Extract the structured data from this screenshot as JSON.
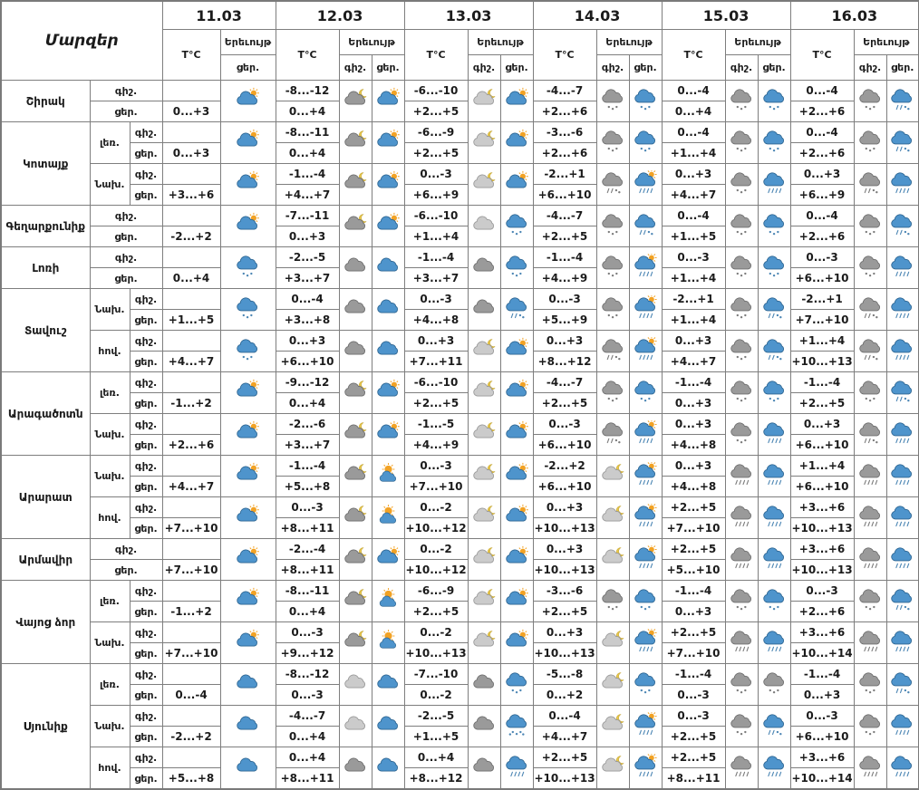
{
  "title": "Մարզեր",
  "dates": [
    "11.03",
    "12.03",
    "13.03",
    "14.03",
    "15.03",
    "16.03"
  ],
  "header": {
    "temp": "T°C",
    "phenomenon": "Երեւույթ",
    "night": "գիշ.",
    "day": "ցեր."
  },
  "colors": {
    "border": "#7e7e7e",
    "text": "#1b1b1b",
    "sun": "#f2a224",
    "moon": "#e9c94e",
    "moon_stroke": "#c0a02e",
    "cloud_blue": "#4e94cc",
    "cloud_blue_stroke": "#2d6591",
    "cloud_gray": "#9a9a9a",
    "cloud_gray_stroke": "#6d6d6d",
    "cloud_light": "#cbcbcb",
    "cloud_light_stroke": "#989898",
    "precip_gray": "#7b7b7b",
    "precip_blue": "#4c86b4"
  },
  "regions": [
    {
      "name": "Շիրակ",
      "zones": [
        {
          "zone": "",
          "night_temps": [
            "",
            "-8...-12",
            "-6...-10",
            "-4...-7",
            "0...-4",
            "0...-4"
          ],
          "day_temps": [
            "0...+3",
            "0...+4",
            "+2...+5",
            "+2...+6",
            "0...+4",
            "+2...+6"
          ],
          "icons_night": [
            null,
            "moon-cloud-dark",
            "moon-cloud-light",
            "cloud-gray-snow",
            "cloud-gray-snow",
            "cloud-gray-snow"
          ],
          "icons_day": [
            "sun-cloud",
            "sun-cloud",
            "sun-cloud",
            "cloud-blue-snow",
            "cloud-blue-snow",
            "cloud-blue-sleet"
          ]
        }
      ]
    },
    {
      "name": "Կոտայք",
      "zones": [
        {
          "zone": "լեռ.",
          "night_temps": [
            "",
            "-8...-11",
            "-6...-9",
            "-3...-6",
            "0...-4",
            "0...-4"
          ],
          "day_temps": [
            "0...+3",
            "0...+4",
            "+2...+5",
            "+2...+6",
            "+1...+4",
            "+2...+6"
          ],
          "icons_night": [
            null,
            "moon-cloud-dark",
            "moon-cloud-light",
            "cloud-gray-snow",
            "cloud-gray-snow",
            "cloud-gray-snow"
          ],
          "icons_day": [
            "sun-cloud",
            "sun-cloud",
            "sun-cloud",
            "cloud-blue-snow",
            "cloud-blue-snow",
            "cloud-blue-sleet"
          ]
        },
        {
          "zone": "Նախ.",
          "night_temps": [
            "",
            "-1...-4",
            "0...-3",
            "-2...+1",
            "0...+3",
            "0...+3"
          ],
          "day_temps": [
            "+3...+6",
            "+4...+7",
            "+6...+9",
            "+6...+10",
            "+4...+7",
            "+6...+9"
          ],
          "icons_night": [
            null,
            "moon-cloud-dark",
            "moon-cloud-light",
            "cloud-gray-sleet",
            "cloud-gray-snow",
            "cloud-gray-sleet"
          ],
          "icons_day": [
            "sun-cloud",
            "sun-cloud",
            "sun-cloud",
            "sun-cloud-rain",
            "cloud-blue-rain",
            "cloud-blue-rain"
          ]
        }
      ]
    },
    {
      "name": "Գեղարքունիք",
      "zones": [
        {
          "zone": "",
          "night_temps": [
            "",
            "-7...-11",
            "-6...-10",
            "-4...-7",
            "0...-4",
            "0...-4"
          ],
          "day_temps": [
            "-2...+2",
            "0...+3",
            "+1...+4",
            "+2...+5",
            "+1...+5",
            "+2...+6"
          ],
          "icons_night": [
            null,
            "moon-cloud-dark",
            "cloud-light",
            "cloud-gray-snow",
            "cloud-gray-snow",
            "cloud-gray-snow"
          ],
          "icons_day": [
            "sun-cloud",
            "sun-cloud",
            "cloud-blue-snow",
            "cloud-blue-sleet",
            "cloud-blue-snow",
            "cloud-blue-sleet"
          ]
        }
      ]
    },
    {
      "name": "Լոռի",
      "zones": [
        {
          "zone": "",
          "night_temps": [
            "",
            "-2...-5",
            "-1...-4",
            "-1...-4",
            "0...-3",
            "0...-3"
          ],
          "day_temps": [
            "0...+4",
            "+3...+7",
            "+3...+7",
            "+4...+9",
            "+1...+4",
            "+6...+10"
          ],
          "icons_night": [
            null,
            "cloud-gray",
            "cloud-gray",
            "cloud-gray-snow",
            "cloud-gray-snow",
            "cloud-gray-snow"
          ],
          "icons_day": [
            "cloud-blue-snow",
            "cloud-blue",
            "cloud-blue-snow",
            "sun-cloud-rain",
            "cloud-blue-snow",
            "cloud-blue-rain"
          ]
        }
      ]
    },
    {
      "name": "Տավուշ",
      "zones": [
        {
          "zone": "Նախ.",
          "night_temps": [
            "",
            "0...-4",
            "0...-3",
            "0...-3",
            "-2...+1",
            "-2...+1"
          ],
          "day_temps": [
            "+1...+5",
            "+3...+8",
            "+4...+8",
            "+5...+9",
            "+1...+4",
            "+7...+10"
          ],
          "icons_night": [
            null,
            "cloud-gray",
            "cloud-gray",
            "cloud-gray-snow",
            "cloud-gray-snow",
            "cloud-gray-sleet"
          ],
          "icons_day": [
            "cloud-blue-snow",
            "cloud-blue",
            "cloud-blue-sleet",
            "sun-cloud-rain",
            "cloud-blue-sleet",
            "cloud-blue-rain"
          ]
        },
        {
          "zone": "հով.",
          "night_temps": [
            "",
            "0...+3",
            "0...+3",
            "0...+3",
            "0...+3",
            "+1...+4"
          ],
          "day_temps": [
            "+4...+7",
            "+6...+10",
            "+7...+11",
            "+8...+12",
            "+4...+7",
            "+10...+13"
          ],
          "icons_night": [
            null,
            "cloud-gray",
            "moon-cloud-light",
            "cloud-gray-sleet",
            "cloud-gray-snow",
            "cloud-gray-sleet"
          ],
          "icons_day": [
            "cloud-blue-snow",
            "cloud-blue",
            "sun-cloud",
            "sun-cloud-rain",
            "cloud-blue-sleet",
            "cloud-blue-rain"
          ]
        }
      ]
    },
    {
      "name": "Արագածոտն",
      "zones": [
        {
          "zone": "լեռ.",
          "night_temps": [
            "",
            "-9...-12",
            "-6...-10",
            "-4...-7",
            "-1...-4",
            "-1...-4"
          ],
          "day_temps": [
            "-1...+2",
            "0...+4",
            "+2...+5",
            "+2...+5",
            "0...+3",
            "+2...+5"
          ],
          "icons_night": [
            null,
            "moon-cloud-dark",
            "moon-cloud-light",
            "cloud-gray-snow",
            "cloud-gray-snow",
            "cloud-gray-snow"
          ],
          "icons_day": [
            "sun-cloud",
            "sun-cloud",
            "sun-cloud",
            "cloud-blue-snow",
            "cloud-blue-snow",
            "cloud-blue-sleet"
          ]
        },
        {
          "zone": "Նախ.",
          "night_temps": [
            "",
            "-2...-6",
            "-1...-5",
            "0...-3",
            "0...+3",
            "0...+3"
          ],
          "day_temps": [
            "+2...+6",
            "+3...+7",
            "+4...+9",
            "+6...+10",
            "+4...+8",
            "+6...+10"
          ],
          "icons_night": [
            null,
            "moon-cloud-dark",
            "moon-cloud-light",
            "cloud-gray-sleet",
            "cloud-gray-snow",
            "cloud-gray-sleet"
          ],
          "icons_day": [
            "sun-cloud",
            "sun-cloud",
            "sun-cloud",
            "sun-cloud-rain",
            "cloud-blue-rain",
            "cloud-blue-rain"
          ]
        }
      ]
    },
    {
      "name": "Արարատ",
      "zones": [
        {
          "zone": "Նախ.",
          "night_temps": [
            "",
            "-1...-4",
            "0...-3",
            "-2...+2",
            "0...+3",
            "+1...+4"
          ],
          "day_temps": [
            "+4...+7",
            "+5...+8",
            "+7...+10",
            "+6...+10",
            "+4...+8",
            "+6...+10"
          ],
          "icons_night": [
            null,
            "moon-cloud-dark",
            "moon-cloud-light",
            "moon-cloud-light",
            "cloud-gray-rain",
            "cloud-gray-rain"
          ],
          "icons_day": [
            "sun-cloud",
            "sun-behind-cloud",
            "sun-cloud",
            "sun-cloud-rain",
            "cloud-blue-rain",
            "cloud-blue-rain"
          ]
        },
        {
          "zone": "հով.",
          "night_temps": [
            "",
            "0...-3",
            "0...-2",
            "0...+3",
            "+2...+5",
            "+3...+6"
          ],
          "day_temps": [
            "+7...+10",
            "+8...+11",
            "+10...+12",
            "+10...+13",
            "+7...+10",
            "+10...+13"
          ],
          "icons_night": [
            null,
            "moon-cloud-dark",
            "moon-cloud-light",
            "moon-cloud-light",
            "cloud-gray-rain",
            "cloud-gray-rain"
          ],
          "icons_day": [
            "sun-cloud",
            "sun-behind-cloud",
            "sun-cloud",
            "sun-cloud-rain",
            "cloud-blue-rain",
            "cloud-blue-rain"
          ]
        }
      ]
    },
    {
      "name": "Արմավիր",
      "zones": [
        {
          "zone": "",
          "night_temps": [
            "",
            "-2...-4",
            "0...-2",
            "0...+3",
            "+2...+5",
            "+3...+6"
          ],
          "day_temps": [
            "+7...+10",
            "+8...+11",
            "+10...+12",
            "+10...+13",
            "+5...+10",
            "+10...+13"
          ],
          "icons_night": [
            null,
            "moon-cloud-dark",
            "moon-cloud-light",
            "moon-cloud-light",
            "cloud-gray-rain",
            "cloud-gray-rain"
          ],
          "icons_day": [
            "sun-cloud",
            "sun-cloud",
            "sun-cloud",
            "sun-cloud-rain",
            "cloud-blue-rain",
            "cloud-blue-rain"
          ]
        }
      ]
    },
    {
      "name": "Վայոց ձոր",
      "zones": [
        {
          "zone": "լեռ.",
          "night_temps": [
            "",
            "-8...-11",
            "-6...-9",
            "-3...-6",
            "-1...-4",
            "0...-3"
          ],
          "day_temps": [
            "-1...+2",
            "0...+4",
            "+2...+5",
            "+2...+5",
            "0...+3",
            "+2...+6"
          ],
          "icons_night": [
            null,
            "moon-cloud-dark",
            "moon-cloud-light",
            "cloud-gray-snow",
            "cloud-gray-snow",
            "cloud-gray-snow"
          ],
          "icons_day": [
            "sun-cloud",
            "sun-behind-cloud",
            "sun-cloud",
            "cloud-blue-snow",
            "cloud-blue-snow",
            "cloud-blue-sleet"
          ]
        },
        {
          "zone": "Նախ.",
          "night_temps": [
            "",
            "0...-3",
            "0...-2",
            "0...+3",
            "+2...+5",
            "+3...+6"
          ],
          "day_temps": [
            "+7...+10",
            "+9...+12",
            "+10...+13",
            "+10...+13",
            "+7...+10",
            "+10...+14"
          ],
          "icons_night": [
            null,
            "moon-cloud-dark",
            "moon-cloud-light",
            "moon-cloud-light",
            "cloud-gray-rain",
            "cloud-gray-rain"
          ],
          "icons_day": [
            "sun-cloud",
            "sun-behind-cloud",
            "sun-cloud",
            "sun-cloud-rain",
            "cloud-blue-rain",
            "cloud-blue-rain"
          ]
        }
      ]
    },
    {
      "name": "Սյունիք",
      "zones": [
        {
          "zone": "լեռ.",
          "night_temps": [
            "",
            "-8...-12",
            "-7...-10",
            "-5...-8",
            "-1...-4",
            "-1...-4"
          ],
          "day_temps": [
            "0...-4",
            "0...-3",
            "0...-2",
            "0...+2",
            "0...-3",
            "0...+3"
          ],
          "icons_night": [
            null,
            "cloud-light",
            "cloud-gray",
            "moon-cloud-light",
            "cloud-gray-snow",
            "cloud-gray-snow"
          ],
          "icons_day": [
            "cloud-blue",
            "cloud-blue",
            "cloud-blue-snow",
            "cloud-blue-snow",
            "cloud-gray-snow",
            "cloud-blue-sleet"
          ]
        },
        {
          "zone": "Նախ.",
          "night_temps": [
            "",
            "-4...-7",
            "-2...-5",
            "0...-4",
            "0...-3",
            "0...-3"
          ],
          "day_temps": [
            "-2...+2",
            "0...+4",
            "+1...+5",
            "+4...+7",
            "+2...+5",
            "+6...+10"
          ],
          "icons_night": [
            null,
            "cloud-light",
            "cloud-gray",
            "moon-cloud-light",
            "cloud-gray-snow",
            "cloud-gray-snow"
          ],
          "icons_day": [
            "cloud-blue",
            "cloud-blue",
            "cloud-blue-snow-heavy",
            "sun-cloud-rain",
            "cloud-blue-sleet",
            "cloud-blue-rain"
          ]
        },
        {
          "zone": "հով.",
          "night_temps": [
            "",
            "0...+4",
            "0...+4",
            "+2...+5",
            "+2...+5",
            "+3...+6"
          ],
          "day_temps": [
            "+5...+8",
            "+8...+11",
            "+8...+12",
            "+10...+13",
            "+8...+11",
            "+10...+14"
          ],
          "icons_night": [
            null,
            "cloud-gray",
            "cloud-gray",
            "moon-cloud-light",
            "cloud-gray-rain",
            "cloud-gray-rain"
          ],
          "icons_day": [
            "cloud-blue",
            "cloud-blue",
            "cloud-blue-rain",
            "sun-cloud-rain",
            "cloud-blue-rain",
            "cloud-blue-rain"
          ]
        }
      ]
    }
  ]
}
